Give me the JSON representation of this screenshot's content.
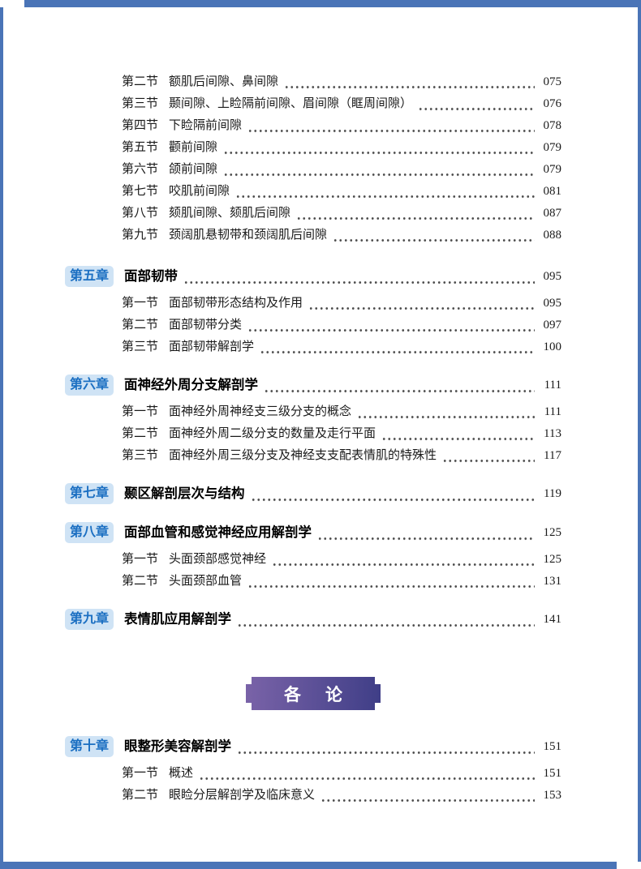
{
  "colors": {
    "frame_blue": "#4a74b7",
    "badge_bg": "#cfe3f5",
    "badge_text": "#1b6fc2",
    "banner_left": "#7a63a8",
    "banner_right": "#3f3e87",
    "dots": "#4a4a4a"
  },
  "toc": {
    "leading_sections": [
      {
        "label": "第二节",
        "title": "额肌后间隙、鼻间隙",
        "page": "075"
      },
      {
        "label": "第三节",
        "title": "颞间隙、上睑隔前间隙、眉间隙（眶周间隙）",
        "page": "076"
      },
      {
        "label": "第四节",
        "title": "下睑隔前间隙",
        "page": "078"
      },
      {
        "label": "第五节",
        "title": "颧前间隙",
        "page": "079"
      },
      {
        "label": "第六节",
        "title": "颌前间隙",
        "page": "079"
      },
      {
        "label": "第七节",
        "title": "咬肌前间隙",
        "page": "081"
      },
      {
        "label": "第八节",
        "title": "颏肌间隙、颏肌后间隙",
        "page": "087"
      },
      {
        "label": "第九节",
        "title": "颈阔肌悬韧带和颈阔肌后间隙",
        "page": "088"
      }
    ],
    "chapters": [
      {
        "label": "第五章",
        "title": "面部韧带",
        "page": "095",
        "sections": [
          {
            "label": "第一节",
            "title": "面部韧带形态结构及作用",
            "page": "095"
          },
          {
            "label": "第二节",
            "title": "面部韧带分类",
            "page": "097"
          },
          {
            "label": "第三节",
            "title": "面部韧带解剖学",
            "page": "100"
          }
        ]
      },
      {
        "label": "第六章",
        "title": "面神经外周分支解剖学",
        "page": "111",
        "sections": [
          {
            "label": "第一节",
            "title": "面神经外周神经支三级分支的概念",
            "page": "111"
          },
          {
            "label": "第二节",
            "title": "面神经外周二级分支的数量及走行平面",
            "page": "113"
          },
          {
            "label": "第三节",
            "title": "面神经外周三级分支及神经支支配表情肌的特殊性",
            "page": "117"
          }
        ]
      },
      {
        "label": "第七章",
        "title": "颞区解剖层次与结构",
        "page": "119",
        "sections": []
      },
      {
        "label": "第八章",
        "title": "面部血管和感觉神经应用解剖学",
        "page": "125",
        "sections": [
          {
            "label": "第一节",
            "title": "头面颈部感觉神经",
            "page": "125"
          },
          {
            "label": "第二节",
            "title": "头面颈部血管",
            "page": "131"
          }
        ]
      },
      {
        "label": "第九章",
        "title": "表情肌应用解剖学",
        "page": "141",
        "sections": []
      }
    ],
    "part_banner": {
      "char1": "各",
      "char2": "论"
    },
    "part2_chapters": [
      {
        "label": "第十章",
        "title": "眼整形美容解剖学",
        "page": "151",
        "sections": [
          {
            "label": "第一节",
            "title": "概述",
            "page": "151"
          },
          {
            "label": "第二节",
            "title": "眼睑分层解剖学及临床意义",
            "page": "153"
          }
        ]
      }
    ]
  }
}
